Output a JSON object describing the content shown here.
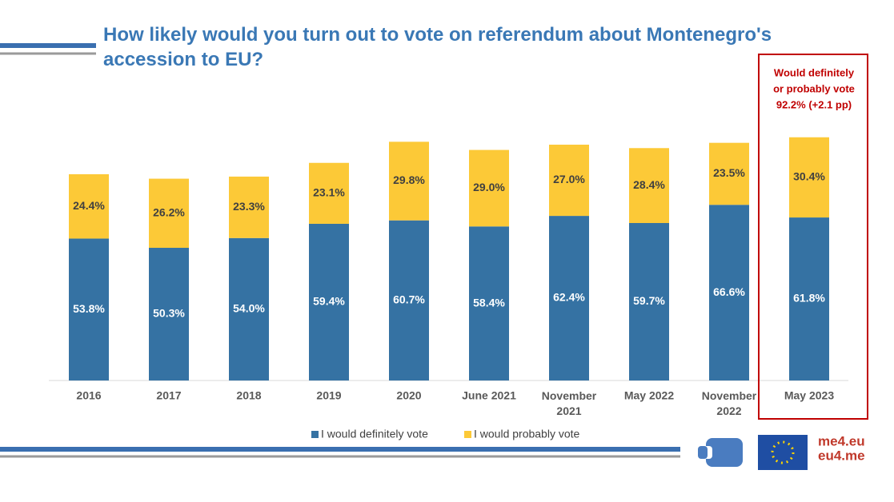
{
  "chart_data": {
    "type": "stacked_bar",
    "title": "How likely would you turn out to vote on referendum about Montenegro's accession to EU?",
    "categories": [
      "2016",
      "2017",
      "2018",
      "2019",
      "2020",
      "June 2021",
      "November 2021",
      "May 2022",
      "November 2022",
      "May 2023"
    ],
    "series": [
      {
        "name": "I would definitely vote",
        "color": "#3572a3",
        "values": [
          53.8,
          50.3,
          54.0,
          59.4,
          60.7,
          58.4,
          62.4,
          59.7,
          66.6,
          61.8
        ],
        "value_labels": [
          "53.8%",
          "50.3%",
          "54.0%",
          "59.4%",
          "60.7%",
          "58.4%",
          "62.4%",
          "59.7%",
          "66.6%",
          "61.8%"
        ]
      },
      {
        "name": "I would probably vote",
        "color": "#fcc937",
        "values": [
          24.4,
          26.2,
          23.3,
          23.1,
          29.8,
          29.0,
          27.0,
          28.4,
          23.5,
          30.4
        ],
        "value_labels": [
          "24.4%",
          "26.2%",
          "23.3%",
          "23.1%",
          "29.8%",
          "29.0%",
          "27.0%",
          "28.4%",
          "23.5%",
          "30.4%"
        ]
      }
    ],
    "annotation": [
      "Would definitely",
      "or probably vote",
      "92.2% (+2.1 pp)"
    ]
  },
  "logo": [
    "me4.eu",
    "eu4.me"
  ]
}
